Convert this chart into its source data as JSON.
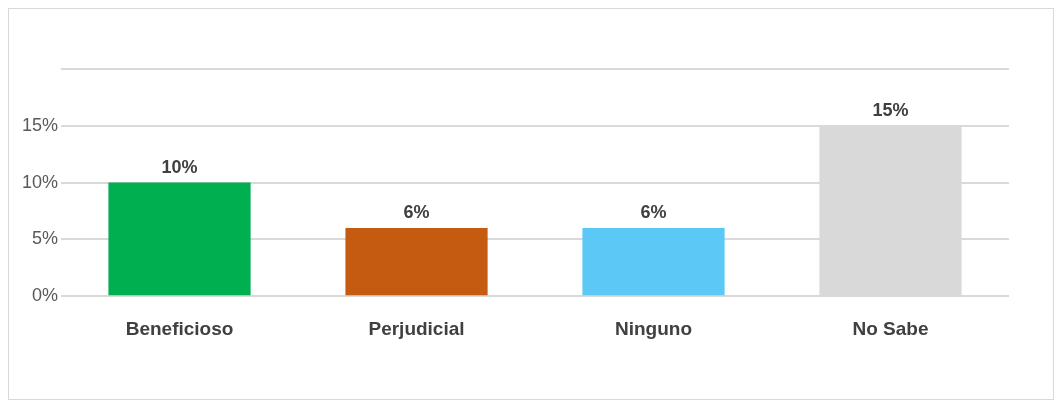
{
  "chart_data": {
    "type": "bar",
    "categories": [
      "Beneficioso",
      "Perjudicial",
      "Ninguno",
      "No Sabe"
    ],
    "values": [
      10,
      6,
      6,
      15
    ],
    "colors": [
      "#00b050",
      "#c55a11",
      "#5bc8f5",
      "#d9d9d9"
    ],
    "value_labels": [
      "10%",
      "6%",
      "6%",
      "15%"
    ],
    "ylim": [
      0,
      20
    ],
    "yticks": [
      {
        "value": 0,
        "label": "0%"
      },
      {
        "value": 5,
        "label": "5%"
      },
      {
        "value": 10,
        "label": "10%"
      },
      {
        "value": 15,
        "label": "15%"
      },
      {
        "value": 20,
        "label": null
      }
    ],
    "grid": "y"
  }
}
